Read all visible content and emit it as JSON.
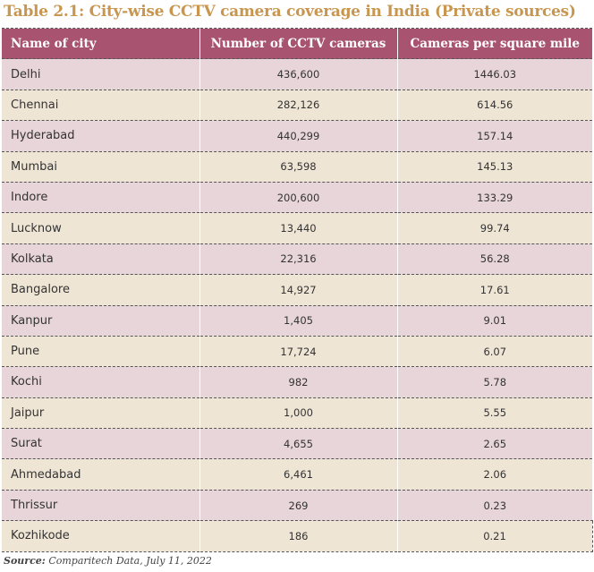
{
  "title": "Table 2.1: City-wise CCTV camera coverage in India (Private sources)",
  "columns": [
    "Name of city",
    "Number of CCTV cameras",
    "Cameras per square mile"
  ],
  "rows": [
    [
      "Delhi",
      "436,600",
      "1446.03"
    ],
    [
      "Chennai",
      "282,126",
      "614.56"
    ],
    [
      "Hyderabad",
      "440,299",
      "157.14"
    ],
    [
      "Mumbai",
      "63,598",
      "145.13"
    ],
    [
      "Indore",
      "200,600",
      "133.29"
    ],
    [
      "Lucknow",
      "13,440",
      "99.74"
    ],
    [
      "Kolkata",
      "22,316",
      "56.28"
    ],
    [
      "Bangalore",
      "14,927",
      "17.61"
    ],
    [
      "Kanpur",
      "1,405",
      "9.01"
    ],
    [
      "Pune",
      "17,724",
      "6.07"
    ],
    [
      "Kochi",
      "982",
      "5.78"
    ],
    [
      "Jaipur",
      "1,000",
      "5.55"
    ],
    [
      "Surat",
      "4,655",
      "2.65"
    ],
    [
      "Ahmedabad",
      "6,461",
      "2.06"
    ],
    [
      "Thrissur",
      "269",
      "0.23"
    ],
    [
      "Kozhikode",
      "186",
      "0.21"
    ]
  ],
  "source_label": "Source:",
  "source_text": " Comparitech Data, July 11, 2022",
  "colors": {
    "header": "#a8536f",
    "row_pink": "#e8d5da",
    "row_beige": "#efe5d5",
    "title": "#c8964f"
  }
}
